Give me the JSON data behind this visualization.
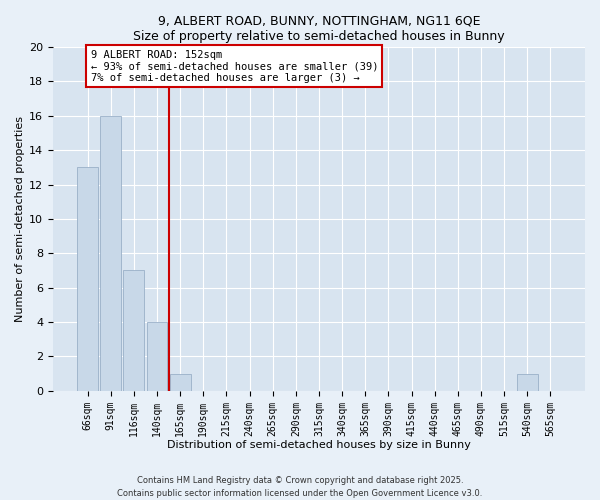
{
  "title1": "9, ALBERT ROAD, BUNNY, NOTTINGHAM, NG11 6QE",
  "title2": "Size of property relative to semi-detached houses in Bunny",
  "xlabel": "Distribution of semi-detached houses by size in Bunny",
  "ylabel": "Number of semi-detached properties",
  "bar_labels": [
    "66sqm",
    "91sqm",
    "116sqm",
    "140sqm",
    "165sqm",
    "190sqm",
    "215sqm",
    "240sqm",
    "265sqm",
    "290sqm",
    "315sqm",
    "340sqm",
    "365sqm",
    "390sqm",
    "415sqm",
    "440sqm",
    "465sqm",
    "490sqm",
    "515sqm",
    "540sqm",
    "565sqm"
  ],
  "bar_values": [
    13,
    16,
    7,
    4,
    1,
    0,
    0,
    0,
    0,
    0,
    0,
    0,
    0,
    0,
    0,
    0,
    0,
    0,
    0,
    1,
    0
  ],
  "bar_color": "#c8d8e8",
  "bar_edge_color": "#9ab0c8",
  "vline_x": 3.5,
  "vline_color": "#cc0000",
  "annotation_title": "9 ALBERT ROAD: 152sqm",
  "annotation_line1": "← 93% of semi-detached houses are smaller (39)",
  "annotation_line2": "7% of semi-detached houses are larger (3) →",
  "annotation_box_edge": "#cc0000",
  "ylim": [
    0,
    20
  ],
  "yticks": [
    0,
    2,
    4,
    6,
    8,
    10,
    12,
    14,
    16,
    18,
    20
  ],
  "footer1": "Contains HM Land Registry data © Crown copyright and database right 2025.",
  "footer2": "Contains public sector information licensed under the Open Government Licence v3.0.",
  "bg_color": "#e8f0f8",
  "plot_bg_color": "#d8e4f0"
}
